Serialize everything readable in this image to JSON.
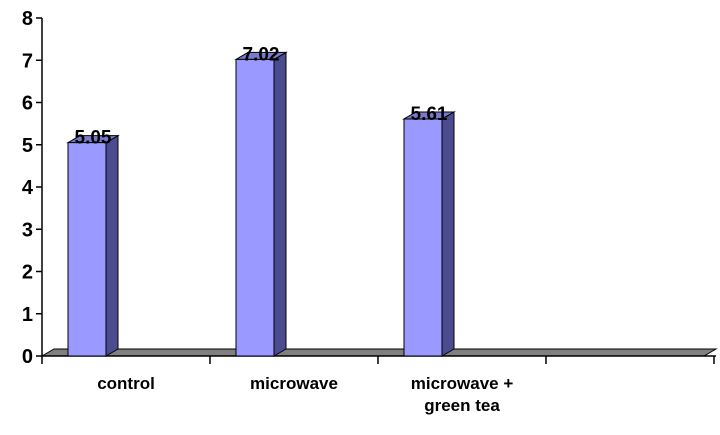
{
  "chart_data": {
    "type": "bar",
    "categories": [
      "control",
      "microwave",
      "microwave +\ngreen tea",
      ""
    ],
    "values": [
      5.05,
      7.02,
      5.61,
      null
    ],
    "data_labels": [
      "5.05",
      "7.02",
      "5.61",
      ""
    ],
    "title": "",
    "xlabel": "",
    "ylabel": "",
    "ylim": [
      0,
      8
    ],
    "yticks": [
      "0",
      "1",
      "2",
      "3",
      "4",
      "5",
      "6",
      "7",
      "8"
    ],
    "grid": false,
    "legend": "none",
    "style": "3d-column",
    "colors": {
      "bar_front": "#9999FF",
      "bar_side": "#4B4B8F",
      "bar_top": "#7A7ACC",
      "floor": "#808080",
      "axis": "#000000"
    }
  }
}
